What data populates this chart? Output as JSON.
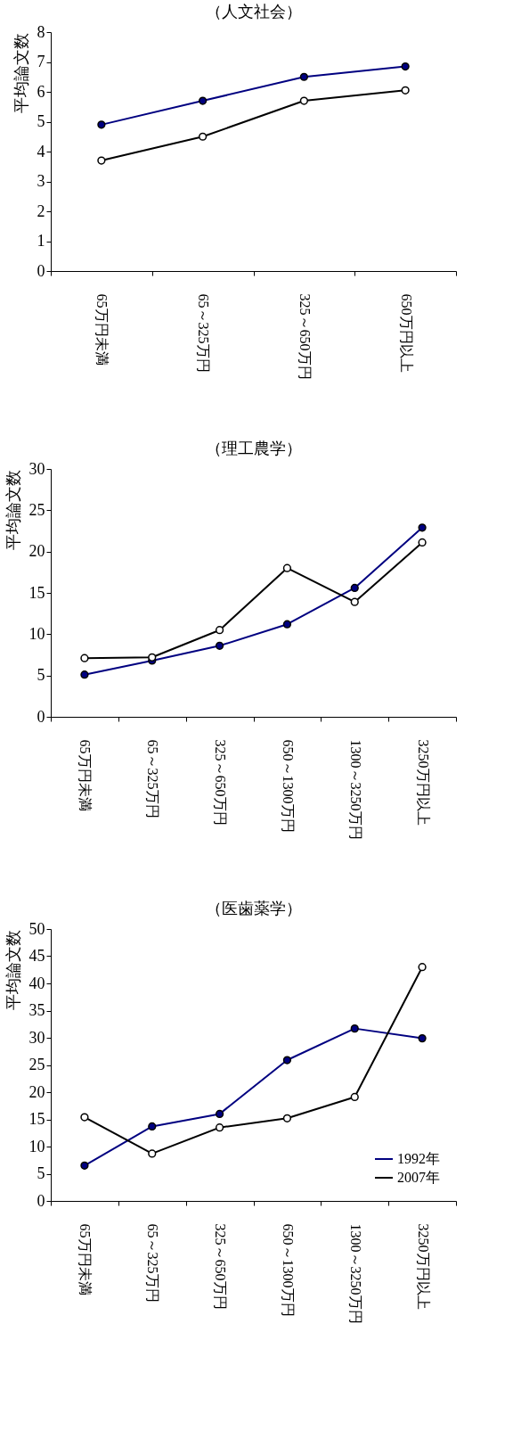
{
  "chart_data": [
    {
      "type": "line",
      "title": "（人文社会）",
      "ylabel": "平均論文数",
      "categories": [
        "65万円未満",
        "65～325万円",
        "325～650万円",
        "650万円以上"
      ],
      "ylim": [
        0,
        8
      ],
      "yticks": [
        0,
        1,
        2,
        3,
        4,
        5,
        6,
        7,
        8
      ],
      "grid": false,
      "legend": false,
      "marker": "circle",
      "line_style": "solid",
      "series": [
        {
          "color": "#000080",
          "values": [
            4.9,
            5.7,
            6.5,
            6.85
          ]
        },
        {
          "color": "#000000",
          "values": [
            3.7,
            4.5,
            5.7,
            6.05
          ]
        }
      ]
    },
    {
      "type": "line",
      "title": "（理工農学）",
      "ylabel": "平均論文数",
      "categories": [
        "65万円未満",
        "65～325万円",
        "325～650万円",
        "650～1300万円",
        "1300～3250万円",
        "3250万円以上"
      ],
      "ylim": [
        0,
        30
      ],
      "yticks": [
        0,
        5,
        10,
        15,
        20,
        25,
        30
      ],
      "grid": false,
      "legend": false,
      "marker": "circle",
      "line_style": "solid",
      "series": [
        {
          "color": "#000080",
          "values": [
            5.1,
            6.8,
            8.6,
            11.2,
            15.6,
            22.9
          ]
        },
        {
          "color": "#000000",
          "values": [
            7.1,
            7.2,
            10.5,
            18.0,
            13.9,
            21.1
          ]
        }
      ]
    },
    {
      "type": "line",
      "title": "（医歯薬学）",
      "ylabel": "平均論文数",
      "categories": [
        "65万円未満",
        "65～325万円",
        "325～650万円",
        "650～1300万円",
        "1300～3250万円",
        "3250万円以上"
      ],
      "ylim": [
        0,
        50
      ],
      "yticks": [
        0,
        5,
        10,
        15,
        20,
        25,
        30,
        35,
        40,
        45,
        50
      ],
      "grid": false,
      "legend": "bottom right",
      "marker": "circle",
      "line_style": "solid",
      "series": [
        {
          "name": "1992年",
          "color": "#000080",
          "values": [
            6.5,
            13.7,
            16.0,
            25.9,
            31.7,
            29.9
          ]
        },
        {
          "name": "2007年",
          "color": "#000000",
          "values": [
            15.4,
            8.7,
            13.5,
            15.2,
            19.1,
            43.0
          ]
        }
      ]
    }
  ]
}
